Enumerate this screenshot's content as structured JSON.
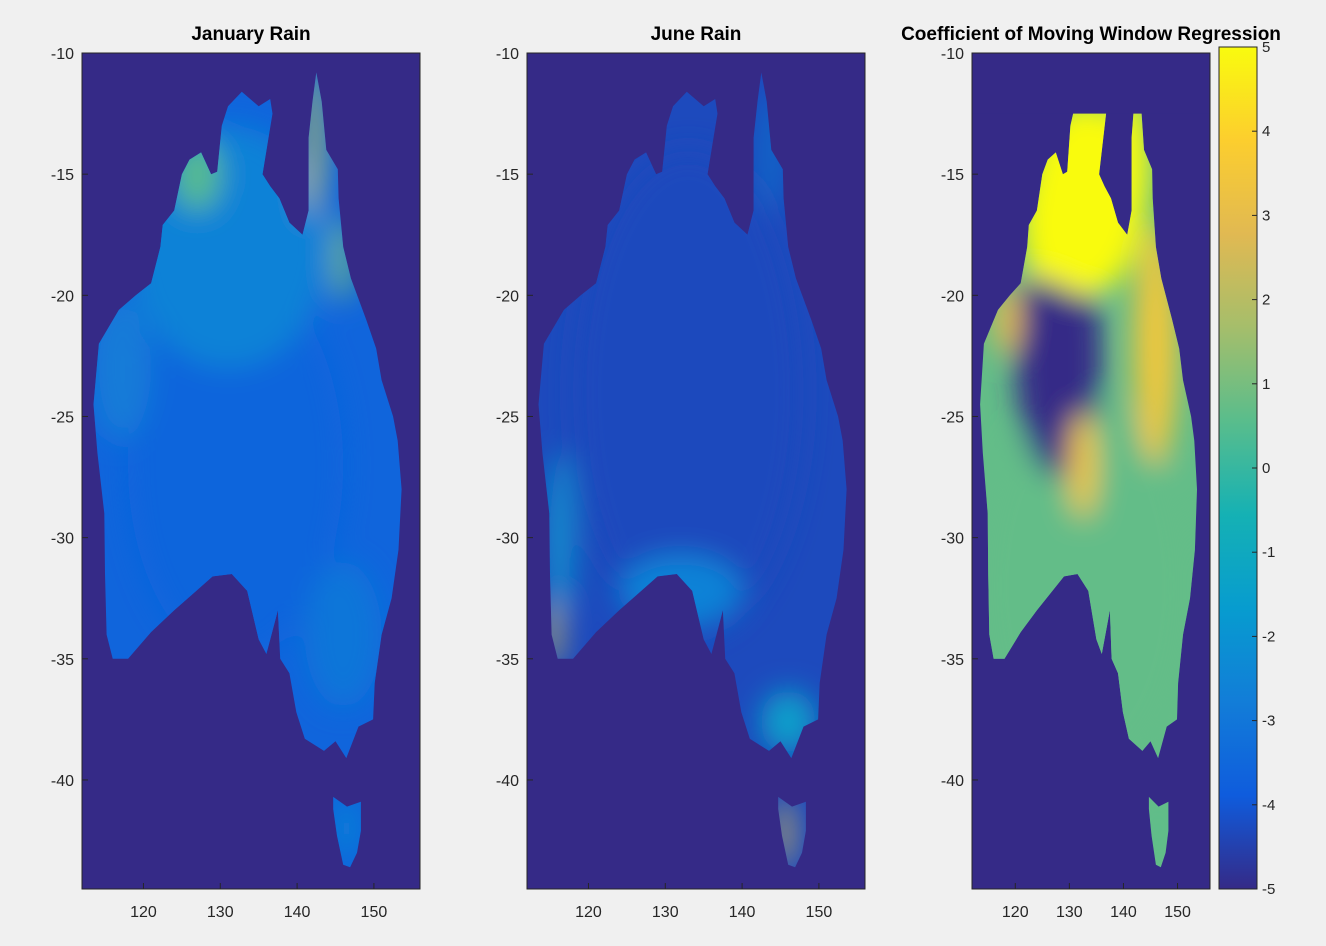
{
  "chart_data": [
    {
      "type": "heatmap",
      "title": "January Rain",
      "xlabel": "",
      "ylabel": "",
      "xlim": [
        112,
        156
      ],
      "ylim": [
        -44.5,
        -10
      ],
      "xticks": [
        120,
        130,
        140,
        150
      ],
      "yticks": [
        -10,
        -15,
        -20,
        -25,
        -30,
        -35,
        -40
      ],
      "clim": [
        -5,
        5
      ],
      "colormap": "parula",
      "background_value": -5,
      "land_mask": "Australia mainland + Tasmania",
      "regions": [
        {
          "name": "interior",
          "value": -3.6
        },
        {
          "name": "north",
          "value": -2.6
        },
        {
          "name": "west coast",
          "value": -2.8
        },
        {
          "name": "Kimberley coast",
          "value": 0.5
        },
        {
          "name": "Cape York",
          "value": 2.0
        },
        {
          "name": "Queensland coast",
          "value": 1.0
        },
        {
          "name": "south east",
          "value": -3.0
        },
        {
          "name": "Tasmania",
          "value": -2.4
        }
      ]
    },
    {
      "type": "heatmap",
      "title": "June Rain",
      "xlabel": "",
      "ylabel": "",
      "xlim": [
        112,
        156
      ],
      "ylim": [
        -44.5,
        -10
      ],
      "xticks": [
        120,
        130,
        140,
        150
      ],
      "yticks": [
        -10,
        -15,
        -20,
        -25,
        -30,
        -35,
        -40
      ],
      "clim": [
        -5,
        5
      ],
      "colormap": "parula",
      "background_value": -5,
      "land_mask": "Australia mainland + Tasmania",
      "regions": [
        {
          "name": "interior",
          "value": -4.3
        },
        {
          "name": "south west coast",
          "value": -1.8
        },
        {
          "name": "Cape Leeuwin",
          "value": 2.5
        },
        {
          "name": "south coast",
          "value": -2.6
        },
        {
          "name": "Victoria",
          "value": -1.5
        },
        {
          "name": "Tasmania west",
          "value": 3.0
        },
        {
          "name": "Cape York east",
          "value": -2.5
        }
      ]
    },
    {
      "type": "heatmap",
      "title": "Coefficient of Moving Window Regression",
      "xlabel": "",
      "ylabel": "",
      "xlim": [
        112,
        156
      ],
      "ylim": [
        -44.5,
        -10
      ],
      "xticks": [
        120,
        130,
        140,
        150
      ],
      "yticks": [
        -10,
        -15,
        -20,
        -25,
        -30,
        -35,
        -40
      ],
      "clim": [
        -5,
        5
      ],
      "colormap": "parula",
      "colorbar_ticks": [
        5,
        4,
        3,
        2,
        1,
        0,
        -1,
        -2,
        -3,
        -4,
        -5
      ],
      "background_value": -5,
      "land_mask": "Australia mainland + Tasmania (lat > -12.5)",
      "regions": [
        {
          "name": "south",
          "value": 0.7
        },
        {
          "name": "central Australia hole",
          "value": -5
        },
        {
          "name": "north",
          "value": 5
        },
        {
          "name": "Kimberley",
          "value": 5
        },
        {
          "name": "Cape York",
          "value": 5
        },
        {
          "name": "Queensland",
          "value": 3.5
        },
        {
          "name": "central east blob",
          "value": 3.5
        },
        {
          "name": "west Pilbara",
          "value": 3
        },
        {
          "name": "Tasmania",
          "value": 0.6
        }
      ]
    }
  ]
}
